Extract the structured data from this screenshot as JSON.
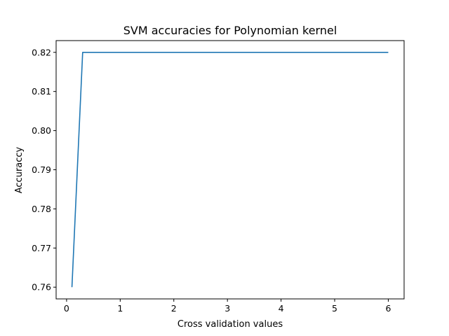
{
  "chart_data": {
    "type": "line",
    "title": "SVM accuracies for Polynomian kernel",
    "xlabel": "Cross validation values",
    "ylabel": "Accuraccy",
    "x": [
      0.1,
      0.3,
      0.5,
      1.0,
      2.0,
      3.0,
      4.0,
      5.0,
      6.0
    ],
    "series": [
      {
        "values": [
          0.76,
          0.82,
          0.82,
          0.82,
          0.82,
          0.82,
          0.82,
          0.82,
          0.82
        ],
        "color": "#1f77b4"
      }
    ],
    "xlim": [
      -0.195,
      6.295
    ],
    "ylim": [
      0.757,
      0.823
    ],
    "xticks": [
      0,
      1,
      2,
      3,
      4,
      5,
      6
    ],
    "xtick_labels": [
      "0",
      "1",
      "2",
      "3",
      "4",
      "5",
      "6"
    ],
    "yticks": [
      0.76,
      0.77,
      0.78,
      0.79,
      0.8,
      0.81,
      0.82
    ],
    "ytick_labels": [
      "0.76",
      "0.77",
      "0.78",
      "0.79",
      "0.80",
      "0.81",
      "0.82"
    ],
    "grid": false,
    "legend": "none"
  }
}
